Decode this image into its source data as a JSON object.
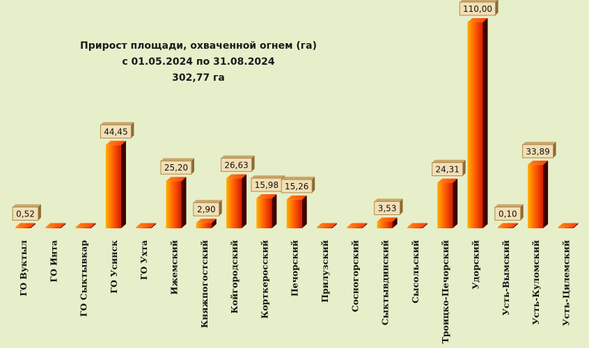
{
  "chart_data": {
    "type": "bar",
    "title_lines": [
      "Прирост площади, охваченной огнем (га)",
      "с 01.05.2024  по  31.08.2024",
      "302,77 га"
    ],
    "categories": [
      "ГО Вуктыл",
      "ГО Инта",
      "ГО Сыктывкар",
      "ГО Усинск",
      "ГО Ухта",
      "Ижемский",
      "Княжпогостский",
      "Койгородский",
      "Корткеросский",
      "Печорский",
      "Прилузский",
      "Сосногорский",
      "Сыктывдинский",
      "Сысольский",
      "Троицко-Печорский",
      "Удорский",
      "Усть-Вымский",
      "Усть-Куломский",
      "Усть-Цилемский"
    ],
    "values": [
      0.52,
      0,
      0,
      44.45,
      0,
      25.2,
      2.9,
      26.63,
      15.98,
      15.26,
      0,
      0,
      3.53,
      0,
      24.31,
      110.0,
      0.1,
      33.89,
      0
    ],
    "labels": [
      "0,52",
      "",
      "",
      "44,45",
      "",
      "25,20",
      "2,90",
      "26,63",
      "15,98",
      "15,26",
      "",
      "",
      "3,53",
      "",
      "24,31",
      "110,00",
      "0,10",
      "33,89",
      ""
    ],
    "ylim": [
      0,
      110
    ],
    "grid": false,
    "legend": "none",
    "colors": {
      "background": "#e6efc9",
      "bar_top": "#ffae00",
      "bar_mid": "#ff5a00",
      "bar_dark": "#d21e00",
      "bar_side": "#4a0000",
      "label_box": "#f2dfb6",
      "label_border": "#b08848"
    }
  }
}
